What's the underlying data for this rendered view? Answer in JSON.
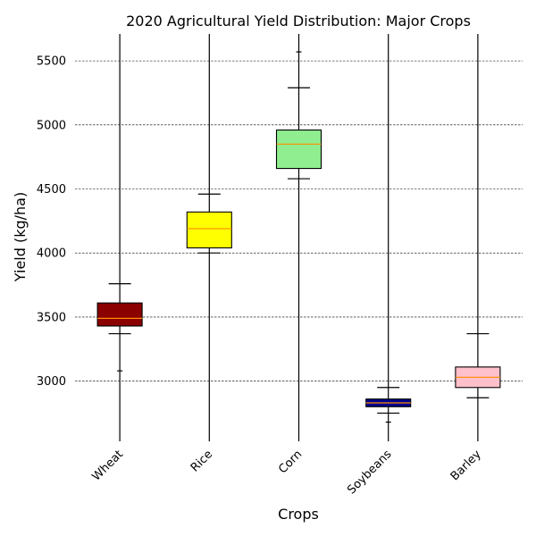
{
  "chart_data": {
    "type": "box",
    "title": "2020 Agricultural Yield Distribution: Major Crops",
    "xlabel": "Crops",
    "ylabel": "Yield (kg/ha)",
    "ylim": [
      2530,
      5710
    ],
    "yticks": [
      3000,
      3500,
      4000,
      4500,
      5000,
      5500
    ],
    "ytick_labels": [
      "3000",
      "3500",
      "4000",
      "4500",
      "5000",
      "5500"
    ],
    "grid": "horizontal, dashed",
    "categories": [
      "Wheat",
      "Rice",
      "Corn",
      "Soybeans",
      "Barley"
    ],
    "boxes": [
      {
        "name": "Wheat",
        "whisker_low": 3370,
        "q1": 3430,
        "median": 3490,
        "q3": 3610,
        "whisker_high": 3760,
        "outliers": [
          3080
        ],
        "color": "#8b0000"
      },
      {
        "name": "Rice",
        "whisker_low": 4000,
        "q1": 4040,
        "median": 4190,
        "q3": 4320,
        "whisker_high": 4460,
        "outliers": [],
        "color": "#ffff00"
      },
      {
        "name": "Corn",
        "whisker_low": 4580,
        "q1": 4660,
        "median": 4850,
        "q3": 4960,
        "whisker_high": 5290,
        "outliers": [
          5570
        ],
        "color": "#90ee90"
      },
      {
        "name": "Soybeans",
        "whisker_low": 2750,
        "q1": 2800,
        "median": 2830,
        "q3": 2860,
        "whisker_high": 2950,
        "outliers": [
          2680
        ],
        "color": "#00008b"
      },
      {
        "name": "Barley",
        "whisker_low": 2870,
        "q1": 2950,
        "median": 3030,
        "q3": 3110,
        "whisker_high": 3370,
        "outliers": [],
        "color": "#ffc0cb"
      }
    ],
    "median_color": "#ff8c00"
  }
}
